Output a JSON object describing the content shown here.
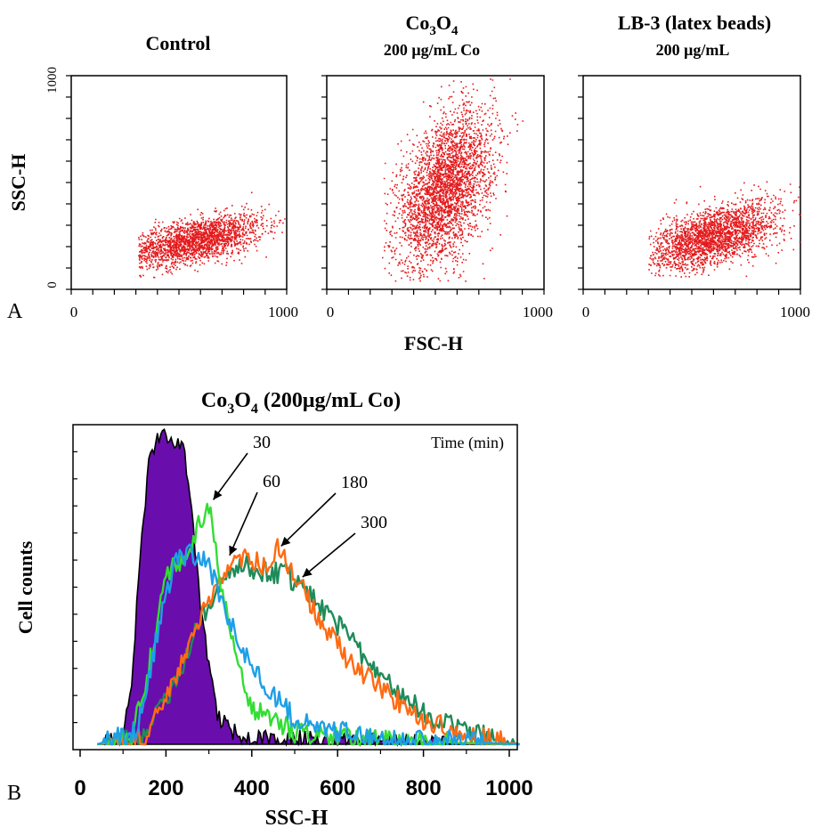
{
  "colors": {
    "dot": "#e41a1c",
    "control_fill": "#6a0dad",
    "series_30": "#33dd33",
    "series_60": "#1e9fe6",
    "series_180": "#ff6a13",
    "series_300": "#1e8b5a"
  },
  "panel_labels": {
    "a": "A",
    "b": "B"
  },
  "chart_data": [
    {
      "type": "scatter",
      "panel": "A",
      "title": "Control",
      "subtitle": "",
      "xlabel": "",
      "ylabel": "SSC-H",
      "xlim": [
        0,
        1000
      ],
      "ylim": [
        0,
        1000
      ],
      "x_ticks": [
        "0",
        "1000"
      ],
      "y_ticks": [
        "0",
        "1000"
      ],
      "cloud": {
        "center": [
          570,
          230
        ],
        "spread": [
          160,
          60
        ],
        "x_range": [
          310,
          1000
        ],
        "y_range": [
          50,
          940
        ],
        "correlation": 0.55,
        "n": 2200
      }
    },
    {
      "type": "scatter",
      "panel": "A",
      "title": "Co3O4",
      "title_main": "Co",
      "title_sub1": "3",
      "title_mid": "O",
      "title_sub2": "4",
      "subtitle": "200 μg/mL Co",
      "xlabel": "FSC-H",
      "ylabel": "",
      "xlim": [
        0,
        1000
      ],
      "ylim": [
        0,
        1000
      ],
      "x_ticks": [
        "0",
        "1000"
      ],
      "cloud": {
        "center": [
          540,
          470
        ],
        "spread": [
          110,
          180
        ],
        "x_range": [
          250,
          1000
        ],
        "y_range": [
          40,
          1000
        ],
        "correlation": 0.45,
        "n": 3200
      }
    },
    {
      "type": "scatter",
      "panel": "A",
      "title": "LB-3 (latex beads)",
      "subtitle": "200 μg/mL",
      "xlabel": "",
      "ylabel": "",
      "xlim": [
        0,
        1000
      ],
      "ylim": [
        0,
        1000
      ],
      "x_ticks": [
        "0",
        "1000"
      ],
      "cloud": {
        "center": [
          600,
          250
        ],
        "spread": [
          150,
          80
        ],
        "x_range": [
          300,
          1000
        ],
        "y_range": [
          60,
          1000
        ],
        "correlation": 0.55,
        "n": 2400
      }
    },
    {
      "type": "area",
      "panel": "B",
      "title": "Co3O4 (200μg/mL Co)",
      "title_main": "Co",
      "title_sub1": "3",
      "title_mid": "O",
      "title_sub2": "4",
      "title_rest": " (200μg/mL Co)",
      "xlabel": "SSC-H",
      "ylabel": "Cell counts",
      "xlim": [
        0,
        1024
      ],
      "x_ticks": [
        0,
        200,
        400,
        600,
        800,
        1000
      ],
      "legend_title": "Time (min)",
      "series": [
        {
          "label": "control",
          "filled": true,
          "x": [
            40,
            100,
            120,
            140,
            160,
            180,
            200,
            220,
            240,
            260,
            280,
            300,
            320,
            340,
            360,
            400,
            1024
          ],
          "y": [
            0,
            2,
            20,
            60,
            90,
            99,
            100,
            98,
            97,
            75,
            45,
            25,
            10,
            6,
            4,
            2,
            0
          ]
        },
        {
          "label": "30",
          "filled": false,
          "x": [
            40,
            120,
            160,
            200,
            250,
            280,
            300,
            320,
            360,
            400,
            500,
            600,
            700,
            1024
          ],
          "y": [
            0,
            2,
            25,
            55,
            62,
            72,
            78,
            58,
            30,
            12,
            4,
            2,
            1,
            0
          ]
        },
        {
          "label": "60",
          "filled": false,
          "x": [
            40,
            130,
            180,
            220,
            260,
            300,
            340,
            400,
            460,
            500,
            600,
            700,
            1024
          ],
          "y": [
            0,
            4,
            35,
            60,
            62,
            58,
            42,
            25,
            15,
            8,
            4,
            2,
            0
          ]
        },
        {
          "label": "180",
          "filled": false,
          "x": [
            40,
            150,
            220,
            280,
            330,
            380,
            430,
            460,
            500,
            560,
            620,
            700,
            800,
            900,
            1024
          ],
          "y": [
            0,
            2,
            20,
            40,
            55,
            60,
            58,
            63,
            55,
            40,
            28,
            18,
            8,
            3,
            0
          ]
        },
        {
          "label": "300",
          "filled": false,
          "x": [
            40,
            150,
            220,
            280,
            330,
            380,
            430,
            480,
            520,
            580,
            640,
            720,
            800,
            900,
            1024
          ],
          "y": [
            0,
            2,
            20,
            40,
            53,
            58,
            56,
            55,
            50,
            42,
            32,
            20,
            10,
            4,
            0
          ]
        }
      ],
      "annotations": [
        {
          "text": "30",
          "series": "30",
          "x": 302,
          "y": 78
        },
        {
          "text": "60",
          "series": "60",
          "x": 340,
          "y": 60
        },
        {
          "text": "180",
          "series": "180",
          "x": 460,
          "y": 63
        },
        {
          "text": "300",
          "series": "300",
          "x": 510,
          "y": 53
        }
      ]
    }
  ]
}
